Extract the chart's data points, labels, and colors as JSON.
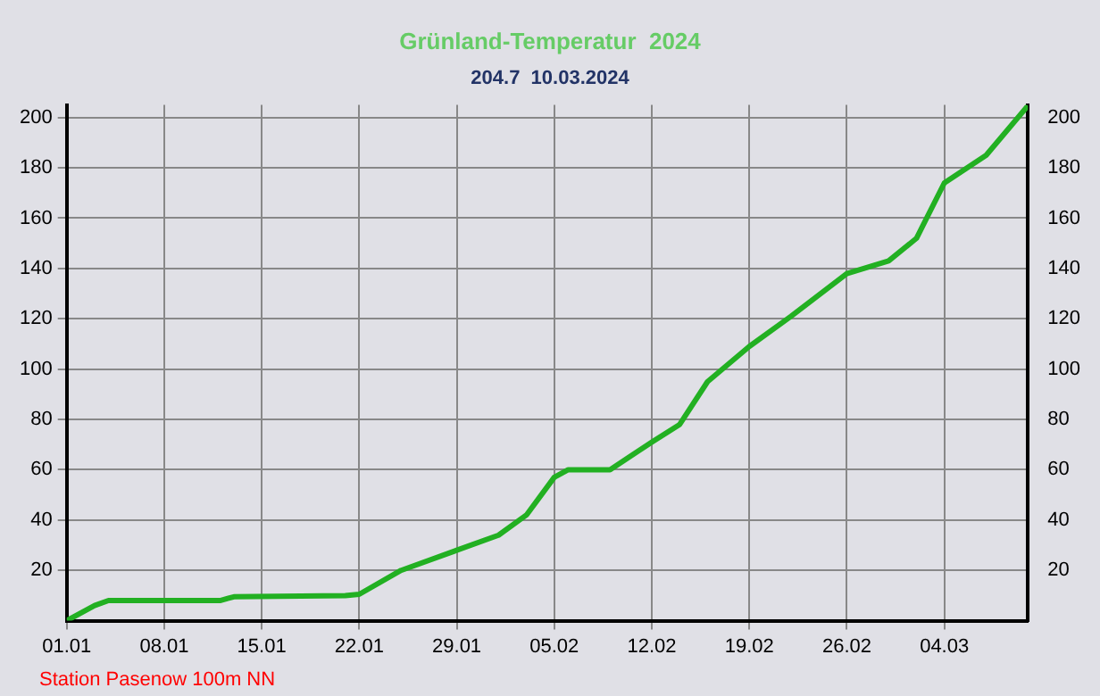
{
  "chart_data": {
    "type": "line",
    "title": "Grünland-Temperatur  2024",
    "subtitle": "204.7  10.03.2024",
    "x": [
      "2024-01-01",
      "2024-01-03",
      "2024-01-04",
      "2024-01-12",
      "2024-01-13",
      "2024-01-21",
      "2024-01-22",
      "2024-01-25",
      "2024-01-29",
      "2024-02-01",
      "2024-02-03",
      "2024-02-05",
      "2024-02-06",
      "2024-02-09",
      "2024-02-12",
      "2024-02-14",
      "2024-02-16",
      "2024-02-19",
      "2024-02-22",
      "2024-02-26",
      "2024-02-29",
      "2024-03-02",
      "2024-03-04",
      "2024-03-07",
      "2024-03-10"
    ],
    "series": [
      {
        "color": "#22b022",
        "values": [
          0,
          6,
          8,
          8,
          9.5,
          10,
          10.5,
          20,
          28,
          34,
          42,
          57,
          60,
          60,
          71,
          78,
          95,
          109,
          121,
          138,
          143,
          152,
          174,
          185,
          204.7
        ]
      }
    ],
    "xlim": [
      "2024-01-01",
      "2024-03-10"
    ],
    "xticks": [
      {
        "value": "2024-01-01",
        "label": "01.01"
      },
      {
        "value": "2024-01-08",
        "label": "08.01"
      },
      {
        "value": "2024-01-15",
        "label": "15.01"
      },
      {
        "value": "2024-01-22",
        "label": "22.01"
      },
      {
        "value": "2024-01-29",
        "label": "29.01"
      },
      {
        "value": "2024-02-05",
        "label": "05.02"
      },
      {
        "value": "2024-02-12",
        "label": "12.02"
      },
      {
        "value": "2024-02-19",
        "label": "19.02"
      },
      {
        "value": "2024-02-26",
        "label": "26.02"
      },
      {
        "value": "2024-03-04",
        "label": "04.03"
      }
    ],
    "ylim": [
      0,
      205
    ],
    "yticks": [
      20,
      40,
      60,
      80,
      100,
      120,
      140,
      160,
      180,
      200
    ],
    "y2lim": [
      0,
      205
    ],
    "y2ticks": [
      20,
      40,
      60,
      80,
      100,
      120,
      140,
      160,
      180,
      200
    ],
    "grid": true,
    "legend": false,
    "marker": "none",
    "line_style": "solid",
    "annotations": [
      "Station Pasenow 100m NN"
    ]
  }
}
